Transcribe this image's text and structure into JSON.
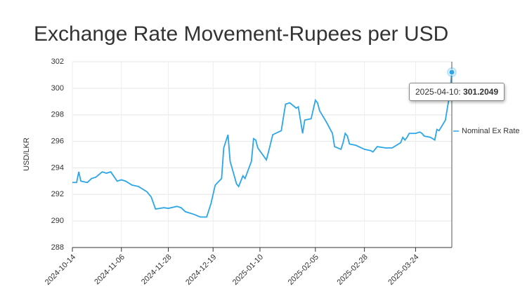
{
  "chart_data": {
    "type": "line",
    "title": "Exchange Rate Movement-Rupees per USD",
    "y_label": "USD/LKR",
    "x": [
      "2024-10-14",
      "2024-10-16",
      "2024-10-17",
      "2024-10-18",
      "2024-10-21",
      "2024-10-23",
      "2024-10-25",
      "2024-10-28",
      "2024-10-30",
      "2024-11-01",
      "2024-11-04",
      "2024-11-06",
      "2024-11-08",
      "2024-11-11",
      "2024-11-14",
      "2024-11-18",
      "2024-11-20",
      "2024-11-22",
      "2024-11-26",
      "2024-11-28",
      "2024-12-02",
      "2024-12-04",
      "2024-12-06",
      "2024-12-10",
      "2024-12-13",
      "2024-12-16",
      "2024-12-17",
      "2024-12-18",
      "2024-12-20",
      "2024-12-23",
      "2024-12-24",
      "2024-12-26",
      "2024-12-27",
      "2024-12-30",
      "2024-12-31",
      "2025-01-02",
      "2025-01-03",
      "2025-01-06",
      "2025-01-07",
      "2025-01-08",
      "2025-01-09",
      "2025-01-13",
      "2025-01-14",
      "2025-01-16",
      "2025-01-20",
      "2025-01-21",
      "2025-01-22",
      "2025-01-24",
      "2025-01-27",
      "2025-01-28",
      "2025-01-29",
      "2025-01-30",
      "2025-01-31",
      "2025-02-03",
      "2025-02-05",
      "2025-02-06",
      "2025-02-07",
      "2025-02-10",
      "2025-02-11",
      "2025-02-13",
      "2025-02-14",
      "2025-02-17",
      "2025-02-18",
      "2025-02-19",
      "2025-02-20",
      "2025-02-21",
      "2025-02-24",
      "2025-02-28",
      "2025-03-03",
      "2025-03-04",
      "2025-03-06",
      "2025-03-10",
      "2025-03-12",
      "2025-03-13",
      "2025-03-17",
      "2025-03-18",
      "2025-03-19",
      "2025-03-20",
      "2025-03-21",
      "2025-03-24",
      "2025-03-26",
      "2025-03-27",
      "2025-03-28",
      "2025-03-31",
      "2025-04-01",
      "2025-04-02",
      "2025-04-03",
      "2025-04-04",
      "2025-04-07",
      "2025-04-08",
      "2025-04-09",
      "2025-04-10"
    ],
    "series": [
      {
        "name": "Nominal Ex Rate",
        "color": "#2ba6e8",
        "values": [
          292.9,
          292.9,
          293.7,
          293.0,
          292.9,
          293.2,
          293.3,
          293.7,
          293.6,
          293.7,
          293.0,
          293.1,
          293.0,
          292.7,
          292.6,
          292.2,
          291.8,
          290.9,
          291.0,
          290.95,
          291.1,
          291.0,
          290.7,
          290.5,
          290.3,
          290.3,
          290.8,
          291.3,
          292.7,
          293.2,
          295.5,
          296.5,
          294.5,
          292.8,
          292.6,
          293.4,
          293.2,
          294.5,
          296.2,
          296.1,
          295.5,
          294.6,
          295.2,
          296.5,
          296.8,
          297.8,
          298.8,
          298.9,
          298.5,
          298.6,
          297.6,
          296.6,
          297.6,
          297.7,
          299.1,
          298.9,
          298.3,
          297.5,
          297.2,
          296.6,
          295.6,
          295.4,
          295.9,
          296.6,
          296.4,
          295.8,
          295.7,
          295.4,
          295.3,
          295.2,
          295.6,
          295.5,
          295.5,
          295.5,
          295.9,
          296.3,
          296.1,
          296.3,
          296.6,
          296.6,
          296.7,
          296.6,
          296.4,
          296.3,
          296.2,
          296.1,
          296.9,
          296.8,
          297.6,
          298.6,
          299.5,
          301.2049
        ]
      }
    ],
    "xlim": [
      "2024-10-14",
      "2025-04-10"
    ],
    "xticks": [
      "2024-10-14",
      "2024-11-06",
      "2024-11-28",
      "2024-12-19",
      "2025-01-10",
      "2025-02-05",
      "2025-02-28",
      "2025-03-24"
    ],
    "ylim": [
      288,
      302
    ],
    "yticks": [
      288,
      290,
      292,
      294,
      296,
      298,
      300,
      302
    ],
    "grid": true,
    "legend": "right"
  }
}
